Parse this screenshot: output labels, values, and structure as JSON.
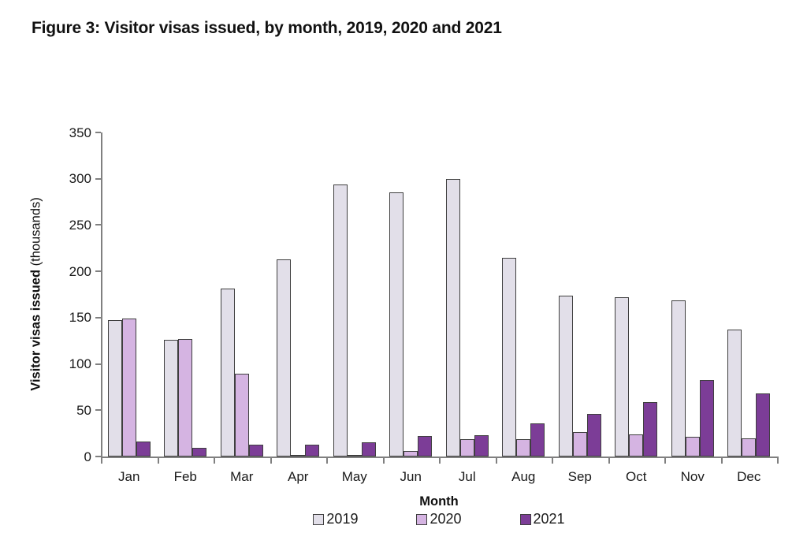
{
  "figure": {
    "title": "Figure 3: Visitor visas issued, by month, 2019, 2020 and 2021"
  },
  "chart_data": {
    "type": "bar",
    "title": "Figure 3: Visitor visas issued, by month, 2019, 2020 and 2021",
    "categories": [
      "Jan",
      "Feb",
      "Mar",
      "Apr",
      "May",
      "Jun",
      "Jul",
      "Aug",
      "Sep",
      "Oct",
      "Nov",
      "Dec"
    ],
    "series": [
      {
        "name": "2019",
        "color": "#e2dfe9",
        "values": [
          147,
          126,
          181,
          213,
          294,
          285,
          300,
          215,
          174,
          172,
          169,
          137
        ]
      },
      {
        "name": "2020",
        "color": "#d5b4e2",
        "values": [
          149,
          127,
          89,
          1,
          1,
          6,
          19,
          19,
          26,
          24,
          21,
          20
        ]
      },
      {
        "name": "2021",
        "color": "#7c3d97",
        "values": [
          16,
          9,
          13,
          13,
          15,
          22,
          23,
          36,
          46,
          59,
          83,
          68
        ]
      }
    ],
    "xlabel": "Month",
    "ylabel_bold": "Visitor visas issued",
    "ylabel_normal": " (thousands)",
    "ylim": [
      0,
      350
    ],
    "yticks": [
      0,
      50,
      100,
      150,
      200,
      250,
      300,
      350
    ],
    "grid": false,
    "legend_position": "bottom",
    "bar_border_color": "#3f3f3f",
    "axis_color": "#808080"
  }
}
